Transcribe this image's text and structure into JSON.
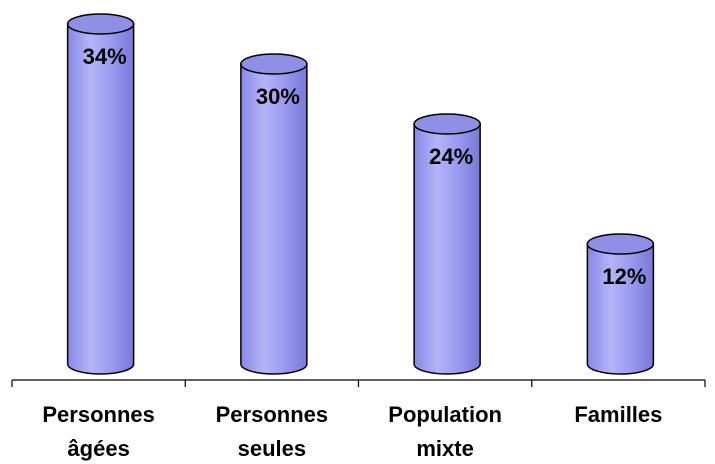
{
  "chart_data": {
    "type": "bar",
    "style": "3d-cylinder",
    "categories": [
      [
        "Personnes",
        "âgées"
      ],
      [
        "Personnes",
        "seules"
      ],
      [
        "Population",
        "mixte"
      ],
      [
        "Familles"
      ]
    ],
    "values": [
      34,
      30,
      24,
      12
    ],
    "data_labels": [
      "34%",
      "30%",
      "24%",
      "12%"
    ],
    "ylim": [
      0,
      34
    ],
    "grid": false,
    "legend": "none",
    "colors": {
      "bar_fill": "#9b9bf0",
      "bar_shade": "#7878d8",
      "bar_highlight": "#b4b4f8",
      "top_fill": "#8f8fe6",
      "outline": "#000000"
    }
  }
}
